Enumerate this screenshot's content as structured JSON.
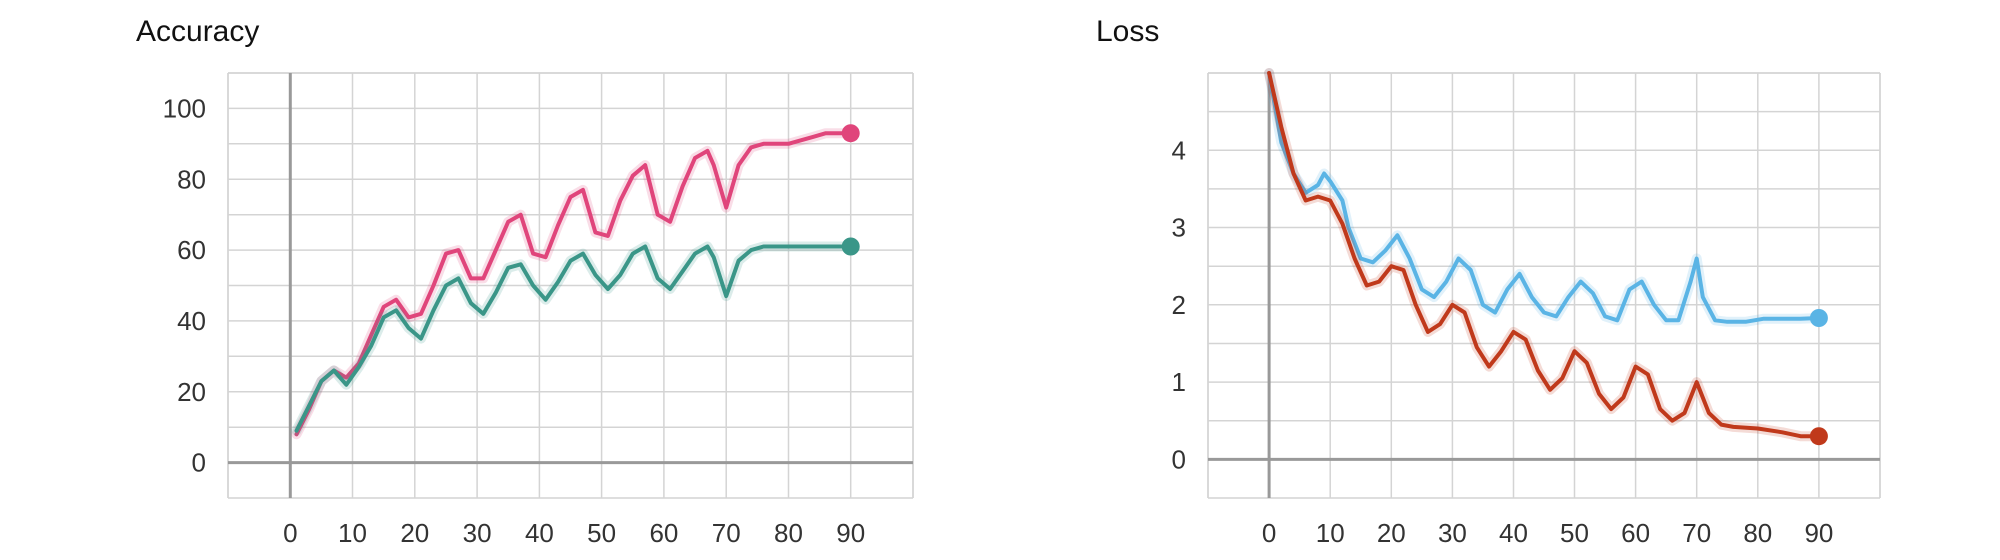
{
  "chart_data": [
    {
      "type": "line",
      "title": "Accuracy",
      "xlabel": "",
      "ylabel": "",
      "xlim": [
        -10,
        100
      ],
      "ylim": [
        -10,
        110
      ],
      "x_ticks": [
        "0",
        "10",
        "20",
        "30",
        "40",
        "50",
        "60",
        "70",
        "80",
        "90"
      ],
      "y_ticks": [
        "0",
        "20",
        "40",
        "60",
        "80",
        "100"
      ],
      "grid": true,
      "series": [
        {
          "color": "#e0457b",
          "x": [
            1,
            3,
            5,
            7,
            9,
            11,
            13,
            15,
            17,
            19,
            21,
            23,
            25,
            27,
            29,
            31,
            33,
            35,
            37,
            39,
            41,
            43,
            45,
            47,
            49,
            51,
            53,
            55,
            57,
            59,
            61,
            63,
            65,
            67,
            68,
            70,
            72,
            74,
            76,
            78,
            80,
            82,
            84,
            86,
            88,
            90
          ],
          "y": [
            8,
            15,
            23,
            26,
            24,
            28,
            36,
            44,
            46,
            41,
            42,
            50,
            59,
            60,
            52,
            52,
            60,
            68,
            70,
            59,
            58,
            67,
            75,
            77,
            65,
            64,
            74,
            81,
            84,
            70,
            68,
            78,
            86,
            88,
            84,
            72,
            84,
            89,
            90,
            90,
            90,
            91,
            92,
            93,
            93,
            93
          ]
        },
        {
          "color": "#3a9688",
          "x": [
            1,
            3,
            5,
            7,
            9,
            11,
            13,
            15,
            17,
            19,
            21,
            23,
            25,
            27,
            29,
            31,
            33,
            35,
            37,
            39,
            41,
            43,
            45,
            47,
            49,
            51,
            53,
            55,
            57,
            59,
            61,
            63,
            65,
            67,
            68,
            70,
            72,
            74,
            76,
            78,
            80,
            82,
            84,
            86,
            88,
            90
          ],
          "y": [
            9,
            16,
            23,
            26,
            22,
            27,
            33,
            41,
            43,
            38,
            35,
            43,
            50,
            52,
            45,
            42,
            48,
            55,
            56,
            50,
            46,
            51,
            57,
            59,
            53,
            49,
            53,
            59,
            61,
            52,
            49,
            54,
            59,
            61,
            58,
            47,
            57,
            60,
            61,
            61,
            61,
            61,
            61,
            61,
            61,
            61
          ]
        }
      ]
    },
    {
      "type": "line",
      "title": "Loss",
      "xlabel": "",
      "ylabel": "",
      "xlim": [
        -10,
        100
      ],
      "ylim": [
        -0.5,
        5
      ],
      "x_ticks": [
        "0",
        "10",
        "20",
        "30",
        "40",
        "50",
        "60",
        "70",
        "80",
        "90"
      ],
      "y_ticks": [
        "0",
        "1",
        "2",
        "3",
        "4"
      ],
      "grid": true,
      "series": [
        {
          "color": "#5ab4e5",
          "x": [
            0,
            2,
            4,
            6,
            8,
            9,
            10,
            12,
            13,
            15,
            17,
            19,
            21,
            23,
            25,
            27,
            29,
            31,
            33,
            35,
            37,
            39,
            41,
            43,
            45,
            47,
            49,
            51,
            53,
            55,
            57,
            59,
            61,
            63,
            65,
            67,
            69,
            70,
            71,
            73,
            75,
            78,
            81,
            84,
            87,
            90
          ],
          "y": [
            5,
            4.1,
            3.7,
            3.45,
            3.55,
            3.7,
            3.6,
            3.35,
            3.0,
            2.6,
            2.55,
            2.7,
            2.9,
            2.6,
            2.2,
            2.1,
            2.3,
            2.6,
            2.45,
            2.0,
            1.9,
            2.2,
            2.4,
            2.1,
            1.9,
            1.85,
            2.1,
            2.3,
            2.15,
            1.85,
            1.8,
            2.2,
            2.3,
            2.0,
            1.8,
            1.8,
            2.3,
            2.6,
            2.1,
            1.8,
            1.78,
            1.78,
            1.82,
            1.82,
            1.82,
            1.83
          ]
        },
        {
          "color": "#c0391b",
          "x": [
            0,
            2,
            4,
            6,
            8,
            10,
            12,
            14,
            16,
            18,
            20,
            22,
            24,
            26,
            28,
            30,
            32,
            34,
            36,
            38,
            40,
            42,
            44,
            46,
            48,
            50,
            52,
            54,
            56,
            58,
            60,
            62,
            64,
            66,
            68,
            70,
            72,
            74,
            76,
            80,
            84,
            87,
            90
          ],
          "y": [
            5,
            4.3,
            3.7,
            3.35,
            3.4,
            3.35,
            3.05,
            2.6,
            2.25,
            2.3,
            2.5,
            2.45,
            2.0,
            1.65,
            1.75,
            2.0,
            1.9,
            1.45,
            1.2,
            1.4,
            1.65,
            1.55,
            1.15,
            0.9,
            1.05,
            1.4,
            1.25,
            0.85,
            0.65,
            0.8,
            1.2,
            1.1,
            0.65,
            0.5,
            0.6,
            1.0,
            0.6,
            0.45,
            0.42,
            0.4,
            0.35,
            0.3,
            0.3
          ]
        }
      ]
    }
  ]
}
